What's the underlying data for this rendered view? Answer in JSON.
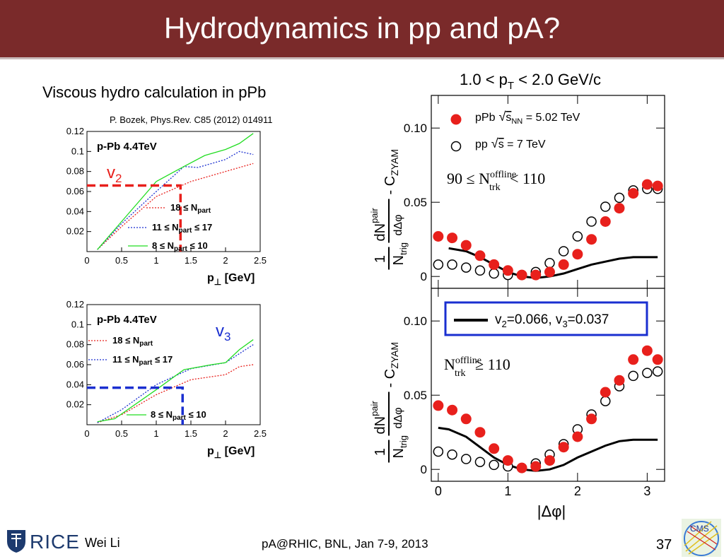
{
  "slide": {
    "title": "Hydrodynamics in pp and pA?",
    "left_heading": "Viscous hydro calculation in pPb",
    "reference": "P. Bozek, Phys.Rev. C85 (2012) 014911",
    "page_number": "37"
  },
  "footer": {
    "author": "Wei Li",
    "event": "pA@RHIC, BNL, Jan 7-9, 2013",
    "logo_text": "RICE",
    "cms_logo_text": "CMS"
  },
  "colors": {
    "title_bg": "#7a2a2a",
    "red": "#e8201c",
    "blue": "#1a2fd0",
    "green": "#22dd22",
    "black": "#000000"
  },
  "chart_data": [
    {
      "type": "line",
      "title": "p-Pb 4.4TeV",
      "harmonic_label": "v",
      "harmonic_sub": "2",
      "xlabel": "p",
      "xlabel_sub": "⊥",
      "xlabel_unit": "[GeV]",
      "xlim": [
        0,
        2.5
      ],
      "ylim": [
        0,
        0.12
      ],
      "x_ticks": [
        "0",
        "0.5",
        "1",
        "1.5",
        "2",
        "2.5"
      ],
      "y_ticks": [
        "0.02",
        "0.04",
        "0.06",
        "0.08",
        "0.1",
        "0.12"
      ],
      "series": [
        {
          "name": "18 ≤ N_part",
          "label_main": "18 ≤ N",
          "label_sub": "part",
          "label_tail": "",
          "style": "dotted",
          "color": "red",
          "x": [
            0.15,
            0.5,
            1.0,
            1.5,
            2.0,
            2.4
          ],
          "y": [
            0.002,
            0.025,
            0.055,
            0.07,
            0.08,
            0.088
          ]
        },
        {
          "name": "11 ≤ N_part ≤ 17",
          "label_main": "11 ≤ N",
          "label_sub": "part",
          "label_tail": " ≤ 17",
          "style": "dotted",
          "color": "blue",
          "x": [
            0.15,
            0.5,
            1.0,
            1.4,
            1.6,
            2.0,
            2.2,
            2.4
          ],
          "y": [
            0.002,
            0.028,
            0.06,
            0.085,
            0.084,
            0.092,
            0.1,
            0.097
          ]
        },
        {
          "name": "8 ≤ N_part ≤ 10",
          "label_main": "8 ≤ N",
          "label_sub": "part",
          "label_tail": " ≤ 10",
          "style": "solid",
          "color": "green",
          "x": [
            0.15,
            0.5,
            1.0,
            1.4,
            1.7,
            2.0,
            2.2,
            2.4
          ],
          "y": [
            0.002,
            0.03,
            0.07,
            0.085,
            0.096,
            0.102,
            0.108,
            0.118
          ]
        }
      ],
      "highlight": {
        "x": 1.35,
        "y": 0.066,
        "color": "red"
      }
    },
    {
      "type": "line",
      "title": "p-Pb 4.4TeV",
      "harmonic_label": "v",
      "harmonic_sub": "3",
      "xlabel": "p",
      "xlabel_sub": "⊥",
      "xlabel_unit": "[GeV]",
      "xlim": [
        0,
        2.5
      ],
      "ylim": [
        0,
        0.12
      ],
      "x_ticks": [
        "0",
        "0.5",
        "1",
        "1.5",
        "2",
        "2.5"
      ],
      "y_ticks": [
        "0.02",
        "0.04",
        "0.06",
        "0.08",
        "0.1",
        "0.12"
      ],
      "series": [
        {
          "name": "18 ≤ N_part",
          "label_main": "18 ≤ N",
          "label_sub": "part",
          "label_tail": "",
          "style": "dotted",
          "color": "red",
          "x": [
            0.15,
            0.5,
            1.0,
            1.5,
            1.8,
            2.0,
            2.2,
            2.4
          ],
          "y": [
            0.002,
            0.01,
            0.03,
            0.045,
            0.048,
            0.05,
            0.058,
            0.06
          ]
        },
        {
          "name": "11 ≤ N_part ≤ 17",
          "label_main": "11 ≤ N",
          "label_sub": "part",
          "label_tail": " ≤ 17",
          "style": "dotted",
          "color": "blue",
          "x": [
            0.15,
            0.5,
            1.0,
            1.5,
            2.0,
            2.4
          ],
          "y": [
            0.002,
            0.015,
            0.04,
            0.056,
            0.062,
            0.08
          ]
        },
        {
          "name": "8 ≤ N_part ≤ 10",
          "label_main": "8 ≤ N",
          "label_sub": "part",
          "label_tail": " ≤ 10",
          "style": "solid",
          "color": "green",
          "x": [
            0.15,
            0.4,
            1.0,
            1.4,
            1.8,
            2.0,
            2.2,
            2.4
          ],
          "y": [
            0.003,
            0.006,
            0.035,
            0.055,
            0.06,
            0.062,
            0.075,
            0.085
          ]
        }
      ],
      "highlight": {
        "x": 1.38,
        "y": 0.037,
        "color": "blue"
      }
    },
    {
      "type": "scatter",
      "panel_title_main": "1.0 < p",
      "panel_title_sub": "T",
      "panel_title_tail": " < 2.0 GeV/c",
      "xlabel": "|Δφ|",
      "xlim": [
        -0.1,
        3.25
      ],
      "ylim": [
        -0.008,
        0.122
      ],
      "x_ticks": [
        "0",
        "1",
        "2",
        "3"
      ],
      "y_ticks": [
        "0",
        "0.05",
        "0.10"
      ],
      "y_label_main": "dN",
      "y_label_sup": "pair",
      "y_label_den": "dΔφ",
      "y_label_pre_num": "1",
      "y_label_pre_den": "N",
      "y_label_pre_den_sub": "trig",
      "y_label_tail": "- C",
      "y_label_tail_sub": "ZYAM",
      "legend": [
        {
          "label_main": "pPb",
          "label_sqrt": "s",
          "label_sqrt_sub": "NN",
          "label_tail": " = 5.02 TeV",
          "marker": "filled"
        },
        {
          "label_main": "pp",
          "label_sqrt": "s",
          "label_sqrt_sub": "",
          "label_tail": " = 7 TeV",
          "marker": "open"
        }
      ],
      "panels": [
        {
          "cut_pre": "90 ≤ N",
          "cut_sup": "offline",
          "cut_sub": "trk",
          "cut_tail": " < 110",
          "ppb": {
            "x": [
              0,
              0.2,
              0.4,
              0.6,
              0.8,
              1.0,
              1.2,
              1.4,
              1.6,
              1.8,
              2.0,
              2.2,
              2.4,
              2.6,
              2.8,
              3.0,
              3.15
            ],
            "y": [
              0.027,
              0.026,
              0.021,
              0.014,
              0.008,
              0.004,
              0.001,
              0.001,
              0.003,
              0.008,
              0.015,
              0.025,
              0.037,
              0.046,
              0.056,
              0.062,
              0.061
            ]
          },
          "pp": {
            "x": [
              0,
              0.2,
              0.4,
              0.6,
              0.8,
              1.0,
              1.2,
              1.4,
              1.6,
              1.8,
              2.0,
              2.2,
              2.4,
              2.6,
              2.8,
              3.0,
              3.15
            ],
            "y": [
              0.008,
              0.008,
              0.006,
              0.004,
              0.002,
              0.001,
              0.001,
              0.003,
              0.009,
              0.017,
              0.027,
              0.037,
              0.047,
              0.053,
              0.058,
              0.059,
              0.059
            ]
          },
          "hydro": {
            "x": [
              0.15,
              0.4,
              0.6,
              0.8,
              1.0,
              1.2,
              1.4,
              1.6,
              1.8,
              2.0,
              2.2,
              2.4,
              2.6,
              2.8,
              3.0,
              3.15
            ],
            "y": [
              0.019,
              0.017,
              0.013,
              0.008,
              0.003,
              0.0,
              -0.001,
              0.0,
              0.002,
              0.005,
              0.008,
              0.01,
              0.012,
              0.013,
              0.013,
              0.013
            ]
          }
        },
        {
          "cut_pre": "N",
          "cut_sup": "offline",
          "cut_sub": "trk",
          "cut_tail": " ≥ 110",
          "hydro_legend_main": "v",
          "hydro_legend_v2_sub": "2",
          "hydro_legend_v2_val": "=0.066, v",
          "hydro_legend_v3_sub": "3",
          "hydro_legend_v3_val": "=0.037",
          "ppb": {
            "x": [
              0,
              0.2,
              0.4,
              0.6,
              0.8,
              1.0,
              1.2,
              1.4,
              1.6,
              1.8,
              2.0,
              2.2,
              2.4,
              2.6,
              2.8,
              3.0,
              3.15
            ],
            "y": [
              0.043,
              0.04,
              0.034,
              0.025,
              0.014,
              0.006,
              0.001,
              0.002,
              0.006,
              0.015,
              0.022,
              0.034,
              0.052,
              0.06,
              0.074,
              0.08,
              0.074
            ]
          },
          "pp": {
            "x": [
              0,
              0.2,
              0.4,
              0.6,
              0.8,
              1.0,
              1.2,
              1.4,
              1.6,
              1.8,
              2.0,
              2.2,
              2.4,
              2.6,
              2.8,
              3.0,
              3.15
            ],
            "y": [
              0.012,
              0.01,
              0.007,
              0.005,
              0.003,
              0.002,
              0.001,
              0.004,
              0.01,
              0.017,
              0.027,
              0.037,
              0.046,
              0.056,
              0.063,
              0.065,
              0.066
            ]
          },
          "hydro": {
            "x": [
              0.0,
              0.15,
              0.4,
              0.6,
              0.8,
              1.0,
              1.2,
              1.4,
              1.6,
              1.8,
              2.0,
              2.2,
              2.4,
              2.6,
              2.8,
              3.0,
              3.15
            ],
            "y": [
              0.028,
              0.027,
              0.022,
              0.015,
              0.008,
              0.003,
              0.0,
              -0.001,
              0.0,
              0.003,
              0.008,
              0.012,
              0.016,
              0.019,
              0.02,
              0.02,
              0.02
            ]
          }
        }
      ]
    }
  ]
}
